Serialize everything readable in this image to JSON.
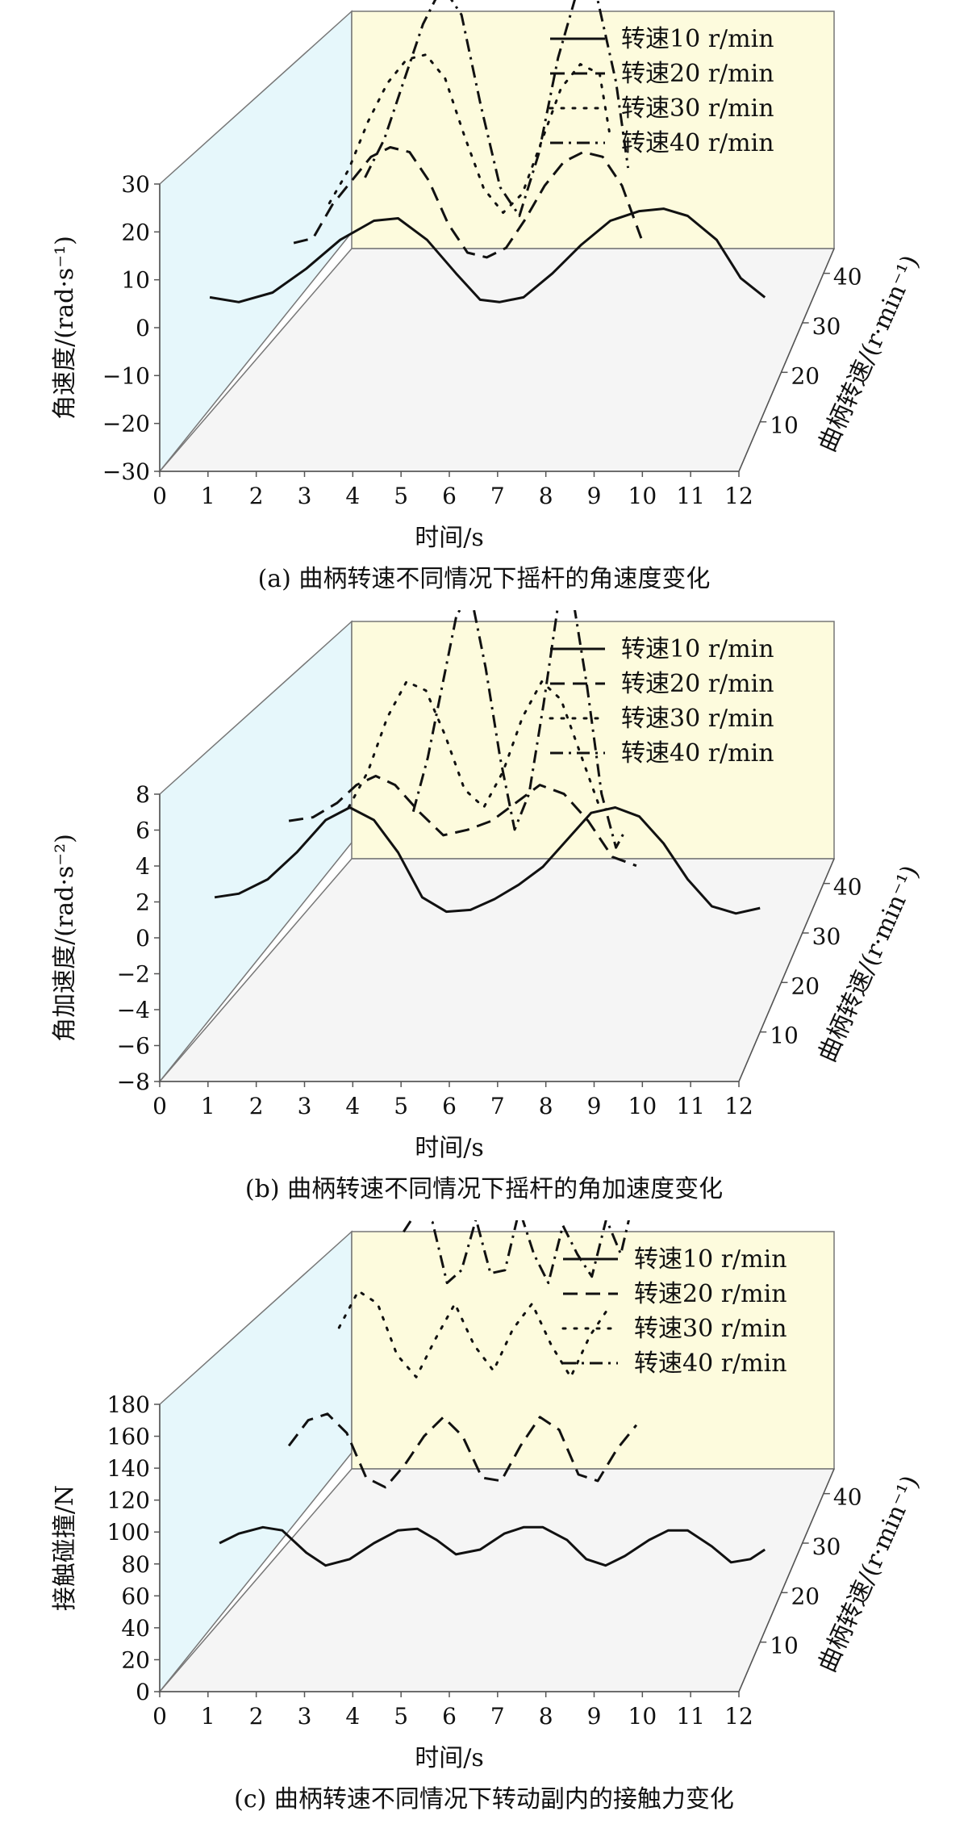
{
  "charts": [
    {
      "caption": "(a) 曲柄转速不同情况下摇杆的角速度变化",
      "ylabel": "角速度/(rad·s⁻¹)",
      "y_ticks": [
        "30",
        "20",
        "10",
        "0",
        "−10",
        "−20",
        "−30"
      ],
      "legend": [
        "转速10 r/min",
        "转速20 r/min",
        "转速30 r/min",
        "转速40 r/min"
      ]
    },
    {
      "caption": "(b) 曲柄转速不同情况下摇杆的角加速度变化",
      "ylabel": "角加速度/(rad·s⁻²)",
      "y_ticks": [
        "8",
        "6",
        "4",
        "2",
        "0",
        "−2",
        "−4",
        "−6",
        "−8"
      ],
      "legend": [
        "转速10 r/min",
        "转速20 r/min",
        "转速30 r/min",
        "转速40 r/min"
      ]
    },
    {
      "caption": "(c) 曲柄转速不同情况下转动副内的接触力变化",
      "ylabel": "接触碰撞/N",
      "y_ticks": [
        "180",
        "160",
        "140",
        "120",
        "100",
        "80",
        "60",
        "40",
        "20",
        "0"
      ],
      "legend": [
        "转速10 r/min",
        "转速20 r/min",
        "转速30 r/min",
        "转速40 r/min"
      ]
    }
  ],
  "x_ticks": [
    "0",
    "1",
    "2",
    "3",
    "4",
    "5",
    "6",
    "7",
    "8",
    "9",
    "10",
    "11",
    "12"
  ],
  "z_ticks": [
    "10",
    "20",
    "30",
    "40"
  ],
  "xlabel": "时间/s",
  "zlabel": "曲柄转速/(r·min⁻¹)",
  "colors": {
    "back_wall": "#fdfbdd",
    "side_wall": "#e6f7fb",
    "floor": "#f5f5f5",
    "line": "#111111",
    "frame": "#777777"
  },
  "chart_data": [
    {
      "type": "line",
      "title": "(a) 曲柄转速不同情况下摇杆的角速度变化",
      "xlabel": "时间/s",
      "ylabel": "角速度/(rad·s⁻¹)",
      "zlabel": "曲柄转速/(r·min⁻¹)",
      "xlim": [
        0,
        12
      ],
      "ylim": [
        -30,
        30
      ],
      "z_values": [
        10,
        20,
        30,
        40
      ],
      "series": [
        {
          "name": "转速10 r/min",
          "z": 10,
          "style": "solid",
          "x": [
            0.6,
            1.2,
            1.9,
            2.6,
            3.3,
            4.0,
            4.5,
            5.1,
            5.7,
            6.2,
            6.6,
            7.1,
            7.7,
            8.3,
            8.9,
            9.5,
            10.0,
            10.5,
            11.1,
            11.6,
            12.1
          ],
          "y": [
            -4,
            -5,
            -3,
            2,
            8,
            12,
            12.5,
            8,
            1,
            -4.5,
            -5,
            -4,
            1,
            7,
            12,
            14,
            14.5,
            13,
            8,
            0,
            -4
          ]
        },
        {
          "name": "转速20 r/min",
          "z": 20,
          "style": "dashed",
          "x": [
            1.9,
            2.3,
            2.7,
            3.1,
            3.5,
            3.9,
            4.3,
            4.7,
            5.1,
            5.5,
            5.9,
            6.3,
            6.7,
            7.1,
            7.5,
            7.9,
            8.3,
            8.7,
            9.1
          ],
          "y": [
            -3,
            -2,
            5,
            10,
            15,
            17,
            16,
            10,
            1,
            -5,
            -6,
            -4,
            2,
            9,
            14,
            16,
            15,
            9,
            -2
          ]
        },
        {
          "name": "转速30 r/min",
          "z": 30,
          "style": "dotted",
          "x": [
            2.2,
            2.6,
            3.0,
            3.4,
            3.8,
            4.2,
            4.6,
            5.0,
            5.4,
            5.8,
            6.2,
            6.6,
            7.0,
            7.4,
            7.8,
            8.0
          ],
          "y": [
            -5,
            2,
            12,
            20,
            25,
            26,
            21,
            9,
            -2,
            -7,
            -3,
            8,
            19,
            24,
            22,
            10
          ]
        },
        {
          "name": "转速40 r/min",
          "z": 40,
          "style": "dashdot",
          "x": [
            2.5,
            2.9,
            3.3,
            3.7,
            4.1,
            4.5,
            4.9,
            5.3,
            5.7,
            6.1,
            6.5,
            6.9,
            7.3,
            7.7,
            7.95
          ],
          "y": [
            -10,
            -2,
            10,
            22,
            30,
            24,
            5,
            -12,
            -18,
            -5,
            15,
            29,
            28,
            10,
            -8
          ]
        }
      ]
    },
    {
      "type": "line",
      "title": "(b) 曲柄转速不同情况下摇杆的角加速度变化",
      "xlabel": "时间/s",
      "ylabel": "角加速度/(rad·s⁻²)",
      "zlabel": "曲柄转速/(r·min⁻¹)",
      "xlim": [
        0,
        12
      ],
      "ylim": [
        -8,
        8
      ],
      "z_values": [
        10,
        20,
        30,
        40
      ],
      "series": [
        {
          "name": "转速10 r/min",
          "z": 10,
          "style": "solid",
          "x": [
            0.7,
            1.2,
            1.8,
            2.4,
            3.0,
            3.5,
            4.0,
            4.5,
            5.0,
            5.5,
            6.0,
            6.5,
            7.0,
            7.5,
            8.0,
            8.5,
            9.0,
            9.5,
            10.0,
            10.5,
            11.0,
            11.5,
            12.0
          ],
          "y": [
            -0.5,
            -0.3,
            0.5,
            2,
            3.8,
            4.5,
            3.8,
            2,
            -0.5,
            -1.3,
            -1.2,
            -0.6,
            0.2,
            1.2,
            2.7,
            4.2,
            4.5,
            4,
            2.5,
            0.5,
            -1,
            -1.4,
            -1.1
          ]
        },
        {
          "name": "转速20 r/min",
          "z": 20,
          "style": "dashed",
          "x": [
            1.8,
            2.3,
            2.8,
            3.2,
            3.6,
            4.0,
            4.5,
            5.0,
            5.5,
            6.0,
            6.5,
            7.0,
            7.5,
            8.0,
            8.5,
            9.0
          ],
          "y": [
            1,
            1.2,
            2,
            3,
            3.5,
            3,
            1.5,
            0.2,
            0.5,
            1,
            2,
            3,
            2.5,
            1,
            -1,
            -1.5
          ]
        },
        {
          "name": "转速30 r/min",
          "z": 30,
          "style": "dotted",
          "x": [
            2.6,
            3.0,
            3.4,
            3.8,
            4.2,
            4.6,
            5.0,
            5.4,
            5.8,
            6.2,
            6.6,
            7.0,
            7.4,
            7.8
          ],
          "y": [
            -1,
            1,
            4,
            6,
            5.5,
            3,
            0,
            -1,
            1,
            4,
            6,
            5,
            2,
            -1
          ]
        },
        {
          "name": "转速40 r/min",
          "z": 40,
          "style": "dashdot",
          "x": [
            3.5,
            3.8,
            4.1,
            4.4,
            4.7,
            5.0,
            5.3,
            5.6,
            5.9,
            6.2,
            6.5,
            6.8,
            7.1,
            7.4,
            7.7,
            7.9
          ],
          "y": [
            -4,
            -1,
            3,
            7,
            8,
            4,
            -1,
            -5,
            -3,
            2,
            7.5,
            8,
            3,
            -3,
            -6,
            -5
          ]
        }
      ]
    },
    {
      "type": "line",
      "title": "(c) 曲柄转速不同情况下转动副内的接触力变化",
      "xlabel": "时间/s",
      "ylabel": "接触碰撞/N",
      "zlabel": "曲柄转速/(r·min⁻¹)",
      "xlim": [
        0,
        12
      ],
      "ylim": [
        0,
        180
      ],
      "z_values": [
        10,
        20,
        30,
        40
      ],
      "series": [
        {
          "name": "转速10 r/min",
          "z": 10,
          "style": "solid",
          "x": [
            0.8,
            1.2,
            1.7,
            2.1,
            2.6,
            3.0,
            3.5,
            4.0,
            4.5,
            4.9,
            5.3,
            5.7,
            6.2,
            6.7,
            7.1,
            7.5,
            8.0,
            8.4,
            8.8,
            9.2,
            9.7,
            10.1,
            10.5,
            11.0,
            11.4,
            11.8,
            12.1
          ],
          "y": [
            62,
            68,
            72,
            70,
            56,
            48,
            52,
            62,
            70,
            71,
            64,
            55,
            58,
            68,
            72,
            72,
            64,
            52,
            48,
            54,
            64,
            70,
            70,
            60,
            50,
            52,
            58
          ]
        },
        {
          "name": "转速20 r/min",
          "z": 20,
          "style": "dashed",
          "x": [
            1.8,
            2.2,
            2.6,
            3.0,
            3.4,
            3.8,
            4.2,
            4.6,
            5.0,
            5.4,
            5.8,
            6.2,
            6.6,
            7.0,
            7.4,
            7.8,
            8.2,
            8.6,
            9.0
          ],
          "y": [
            92,
            108,
            112,
            100,
            72,
            66,
            80,
            98,
            110,
            98,
            72,
            70,
            92,
            110,
            102,
            74,
            70,
            90,
            105
          ]
        },
        {
          "name": "转速30 r/min",
          "z": 30,
          "style": "dotted",
          "x": [
            2.4,
            2.8,
            3.2,
            3.6,
            4.0,
            4.4,
            4.8,
            5.2,
            5.6,
            6.0,
            6.4,
            6.8,
            7.2,
            7.6,
            8.0
          ],
          "y": [
            135,
            158,
            150,
            118,
            104,
            128,
            150,
            124,
            108,
            134,
            150,
            124,
            104,
            130,
            148
          ]
        },
        {
          "name": "转速40 r/min",
          "z": 40,
          "style": "dashdot",
          "x": [
            3.3,
            3.6,
            3.9,
            4.2,
            4.5,
            4.8,
            5.1,
            5.4,
            5.7,
            6.0,
            6.3,
            6.6,
            6.9,
            7.2,
            7.5,
            7.8,
            8.0
          ],
          "y": [
            164,
            178,
            170,
            132,
            140,
            172,
            138,
            140,
            178,
            150,
            132,
            168,
            150,
            136,
            172,
            150,
            176
          ]
        }
      ]
    }
  ]
}
